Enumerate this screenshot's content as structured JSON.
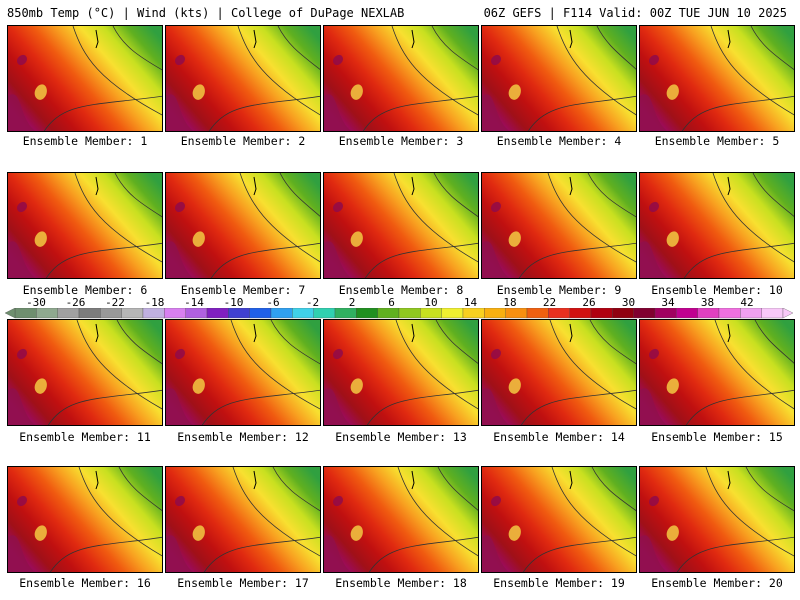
{
  "header": {
    "title_left": "850mb Temp (°C) | Wind (kts) | College of DuPage NEXLAB",
    "title_right": "06Z GEFS | F114 Valid: 00Z TUE JUN 10 2025"
  },
  "members": [
    "Ensemble Member: 1",
    "Ensemble Member: 2",
    "Ensemble Member: 3",
    "Ensemble Member: 4",
    "Ensemble Member: 5",
    "Ensemble Member: 6",
    "Ensemble Member: 7",
    "Ensemble Member: 8",
    "Ensemble Member: 9",
    "Ensemble Member: 10",
    "Ensemble Member: 11",
    "Ensemble Member: 12",
    "Ensemble Member: 13",
    "Ensemble Member: 14",
    "Ensemble Member: 15",
    "Ensemble Member: 16",
    "Ensemble Member: 17",
    "Ensemble Member: 18",
    "Ensemble Member: 19",
    "Ensemble Member: 20"
  ],
  "colorbar": {
    "ticks": [
      "-30",
      "-26",
      "-22",
      "-18",
      "-14",
      "-10",
      "-6",
      "-2",
      "2",
      "6",
      "10",
      "14",
      "18",
      "22",
      "26",
      "30",
      "34",
      "38",
      "42"
    ],
    "colors": [
      "#6f8f6f",
      "#8fa98f",
      "#a0a0a0",
      "#7c7c7c",
      "#999999",
      "#b6b6b6",
      "#c0b0e0",
      "#d880f0",
      "#b060e0",
      "#8020c0",
      "#4040d0",
      "#2060e8",
      "#30a0f0",
      "#40d0e8",
      "#30d0b0",
      "#30b060",
      "#209020",
      "#60b020",
      "#90c820",
      "#c8e020",
      "#f0f030",
      "#f8d020",
      "#f8b010",
      "#f89010",
      "#f06010",
      "#e83020",
      "#d01010",
      "#b00010",
      "#900010",
      "#800030",
      "#a00060",
      "#c00090",
      "#e040c0",
      "#f070e0",
      "#f0a0f0",
      "#f8c8f8"
    ]
  }
}
